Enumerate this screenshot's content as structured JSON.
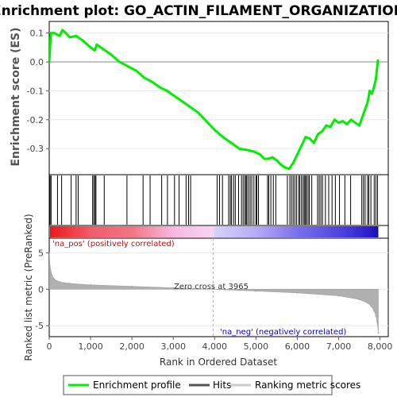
{
  "title": "Enrichment plot: GO_ACTIN_FILAMENT_ORGANIZATION",
  "chart_data": [
    {
      "type": "line",
      "name": "enrichment-profile",
      "ylabel": "Enrichment score (ES)",
      "ylim": [
        -0.39,
        0.14
      ],
      "yticks": [
        0.1,
        0.0,
        -0.1,
        -0.2,
        -0.3
      ],
      "ytick_labels": [
        "0.1",
        "0.0",
        "-0.1",
        "-0.2",
        "-0.3"
      ],
      "xlim": [
        0,
        8200
      ],
      "color": "#00ee00",
      "x": [
        0,
        40,
        120,
        250,
        320,
        400,
        500,
        650,
        800,
        1000,
        1100,
        1150,
        1300,
        1500,
        1700,
        1900,
        2100,
        2300,
        2500,
        2700,
        2850,
        3000,
        3200,
        3400,
        3600,
        3800,
        4000,
        4200,
        4400,
        4600,
        4800,
        4950,
        5100,
        5200,
        5300,
        5400,
        5500,
        5600,
        5700,
        5800,
        5900,
        6000,
        6100,
        6200,
        6300,
        6400,
        6500,
        6600,
        6700,
        6800,
        6900,
        7000,
        7100,
        7200,
        7300,
        7400,
        7500,
        7600,
        7700,
        7750,
        7800,
        7850,
        7900,
        7950
      ],
      "y": [
        0.0,
        0.1,
        0.1,
        0.09,
        0.11,
        0.1,
        0.085,
        0.09,
        0.075,
        0.05,
        0.04,
        0.06,
        0.045,
        0.025,
        0.0,
        -0.015,
        -0.03,
        -0.055,
        -0.07,
        -0.09,
        -0.1,
        -0.115,
        -0.135,
        -0.155,
        -0.175,
        -0.205,
        -0.235,
        -0.26,
        -0.28,
        -0.3,
        -0.305,
        -0.31,
        -0.32,
        -0.335,
        -0.335,
        -0.33,
        -0.34,
        -0.355,
        -0.365,
        -0.37,
        -0.35,
        -0.32,
        -0.29,
        -0.26,
        -0.265,
        -0.28,
        -0.25,
        -0.24,
        -0.22,
        -0.225,
        -0.2,
        -0.21,
        -0.205,
        -0.215,
        -0.2,
        -0.21,
        -0.22,
        -0.18,
        -0.14,
        -0.1,
        -0.11,
        -0.09,
        -0.06,
        0.005
      ]
    },
    {
      "type": "scatter",
      "name": "hits",
      "ytick_labels": [],
      "x": [
        20,
        45,
        200,
        300,
        530,
        650,
        700,
        1050,
        1080,
        1110,
        1130,
        1330,
        1880,
        2270,
        2440,
        2720,
        2860,
        3030,
        3140,
        3310,
        3370,
        3420,
        4060,
        4120,
        4190,
        4340,
        4380,
        4410,
        4460,
        4500,
        4580,
        4650,
        4690,
        4730,
        4760,
        4780,
        4820,
        4860,
        4900,
        4950,
        5000,
        5020,
        5060,
        5280,
        5310,
        5360,
        5420,
        5480,
        5760,
        5820,
        5860,
        5900,
        5940,
        5980,
        6030,
        6060,
        6100,
        6140,
        6170,
        6200,
        6220,
        6260,
        6290,
        6350,
        6490,
        6530,
        6570,
        6610,
        6680,
        6760,
        6840,
        6920,
        7020,
        7150,
        7290,
        7560,
        7600,
        7640,
        7700,
        7730,
        7780,
        7860,
        7900,
        7940
      ]
    },
    {
      "type": "area",
      "name": "ranking-metric",
      "ylabel": "Ranked list metric (PreRanked)",
      "xlabel": "Rank in Ordered Dataset",
      "ylim": [
        -6.5,
        7
      ],
      "yticks": [
        5,
        0,
        -5
      ],
      "ytick_labels": [
        "5",
        "0",
        "-5"
      ],
      "xticks": [
        0,
        1000,
        2000,
        3000,
        4000,
        5000,
        6000,
        7000,
        8000
      ],
      "xtick_labels": [
        "0",
        "1,000",
        "2,000",
        "3,000",
        "4,000",
        "5,000",
        "6,000",
        "7,000",
        "8,000"
      ],
      "zero_cross": 3965,
      "x": [
        0,
        20,
        60,
        120,
        250,
        500,
        1000,
        2000,
        3000,
        3965,
        5000,
        6000,
        7000,
        7500,
        7700,
        7800,
        7850,
        7900,
        7930,
        7960
      ],
      "y": [
        5.0,
        3.2,
        2.0,
        1.4,
        1.0,
        0.8,
        0.6,
        0.4,
        0.2,
        0.0,
        -0.25,
        -0.5,
        -0.9,
        -1.4,
        -1.9,
        -2.4,
        -2.9,
        -3.6,
        -4.5,
        -6.0
      ]
    }
  ],
  "annotations": {
    "na_pos": "'na_pos' (positively correlated)",
    "na_neg": "'na_neg' (negatively correlated)",
    "zero_cross": "Zero cross at 3965",
    "na_pos_color": "#dd0000",
    "na_neg_color": "#0000dd"
  },
  "heatbar": {
    "stops": [
      {
        "x": 0,
        "color": "#ee1a1a"
      },
      {
        "x": 1000,
        "color": "#f05d6a"
      },
      {
        "x": 2000,
        "color": "#f27584"
      },
      {
        "x": 3000,
        "color": "#f7b9e3"
      },
      {
        "x": 3950,
        "color": "#fbd3f3"
      },
      {
        "x": 3990,
        "color": "#d6d2fb"
      },
      {
        "x": 5000,
        "color": "#b3adf5"
      },
      {
        "x": 6000,
        "color": "#7b6fee"
      },
      {
        "x": 7000,
        "color": "#4f45e0"
      },
      {
        "x": 7700,
        "color": "#2c20cf"
      },
      {
        "x": 7960,
        "color": "#1a0ea8"
      }
    ]
  },
  "legend": {
    "items": [
      {
        "label": "Enrichment profile",
        "color": "#00ee00"
      },
      {
        "label": "Hits",
        "color": "#555555"
      },
      {
        "label": "Ranking metric scores",
        "color": "#cccccc"
      }
    ]
  }
}
